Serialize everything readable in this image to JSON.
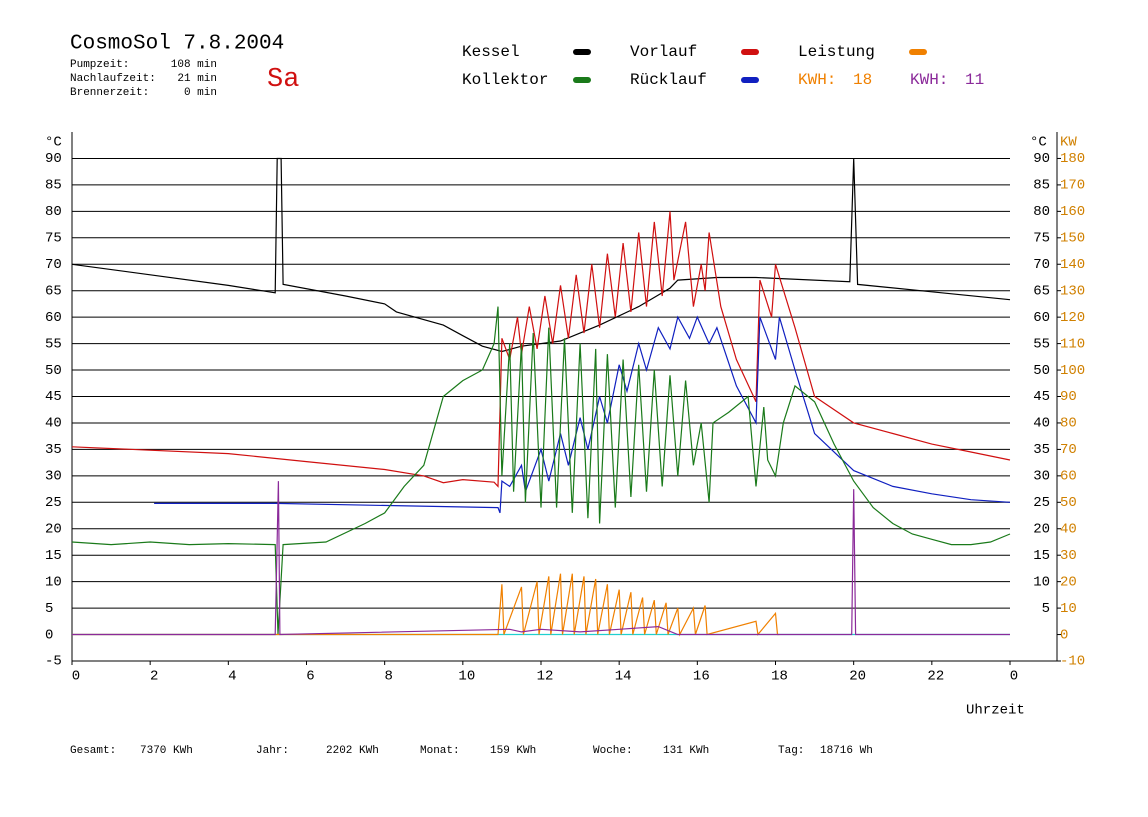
{
  "chart_data": {
    "type": "line",
    "title": "CosmoSol 7.8.2004",
    "day": "Sa",
    "stats": [
      {
        "label": "Pumpzeit:",
        "value": "108 min"
      },
      {
        "label": "Nachlaufzeit:",
        "value": "21 min"
      },
      {
        "label": "Brennerzeit:",
        "value": "0 min"
      }
    ],
    "energy_labels": [
      {
        "label": "KWH:",
        "value": 18,
        "color": "#f08000"
      },
      {
        "label": "KWH:",
        "value": 11,
        "color": "#8b2a9a"
      }
    ],
    "totals": [
      {
        "label": "Gesamt:",
        "value": "7370 KWh"
      },
      {
        "label": "Jahr:",
        "value": "2202 KWh"
      },
      {
        "label": "Monat:",
        "value": "159 KWh"
      },
      {
        "label": "Woche:",
        "value": "131 KWh"
      },
      {
        "label": "Tag:",
        "value": "18716 Wh"
      }
    ],
    "y_unit": "°C",
    "y2_unit": "KW",
    "x_label": "Uhrzeit",
    "xlim": [
      0,
      24
    ],
    "xticks": [
      0,
      2,
      4,
      6,
      8,
      10,
      12,
      14,
      16,
      18,
      20,
      22,
      {
        "value": 24,
        "label": "0"
      }
    ],
    "ylim": [
      -5,
      95
    ],
    "yticks": [
      -5,
      0,
      5,
      10,
      15,
      20,
      25,
      30,
      35,
      40,
      45,
      50,
      55,
      60,
      65,
      70,
      75,
      80,
      85,
      90
    ],
    "y2lim": [
      -10,
      190
    ],
    "y2ticks": [
      -10,
      0,
      10,
      20,
      30,
      40,
      50,
      60,
      70,
      80,
      90,
      100,
      110,
      120,
      130,
      140,
      150,
      160,
      170,
      180
    ],
    "grid": true,
    "series": [
      {
        "name": "Kessel",
        "color": "#000000",
        "x": [
          0,
          2,
          4,
          5.2,
          5.25,
          5.35,
          5.4,
          7,
          8,
          8.3,
          9.5,
          10,
          10.5,
          11,
          11.5,
          12.5,
          13.5,
          14.5,
          15.3,
          15.5,
          16.5,
          17.5,
          19.9,
          20.0,
          20.1,
          22,
          24
        ],
        "values": [
          70,
          68,
          66,
          64.6,
          90,
          90,
          66.2,
          64,
          62.5,
          61,
          58.5,
          56.5,
          54.5,
          53.5,
          54.5,
          55.5,
          58.5,
          62,
          65.5,
          67,
          67.5,
          67.5,
          66.7,
          90,
          66.2,
          64.8,
          63.3
        ]
      },
      {
        "name": "Kollektor",
        "color": "#1a7a1a",
        "x": [
          0,
          1,
          2,
          3,
          4,
          5.2,
          5.27,
          5.4,
          6.5,
          7.5,
          8,
          8.5,
          9,
          9.5,
          10,
          10.5,
          10.8,
          10.9,
          11,
          11.2,
          11.3,
          11.5,
          11.6,
          11.8,
          12,
          12.2,
          12.4,
          12.6,
          12.8,
          13,
          13.2,
          13.4,
          13.5,
          13.7,
          13.9,
          14.1,
          14.3,
          14.5,
          14.7,
          14.9,
          15.1,
          15.3,
          15.5,
          15.7,
          15.9,
          16.1,
          16.3,
          16.4,
          16.8,
          17.3,
          17.5,
          17.7,
          17.8,
          18,
          18.2,
          18.5,
          19,
          19.5,
          20,
          20.2,
          20.5,
          21,
          21.5,
          22,
          22.5,
          23,
          23.5,
          24
        ],
        "values": [
          17.5,
          17,
          17.5,
          17,
          17.2,
          17,
          0,
          17,
          17.5,
          21,
          23,
          28,
          32,
          45,
          48,
          50,
          55,
          62,
          30,
          55,
          27,
          55,
          25,
          57,
          24,
          58,
          24,
          56,
          23,
          55,
          22,
          54,
          21,
          53,
          24,
          52,
          26,
          51,
          27,
          50,
          28,
          49,
          30,
          48,
          32,
          40,
          25,
          40,
          42,
          45,
          28,
          43,
          33,
          30,
          40,
          47,
          44,
          36,
          29,
          27,
          24,
          21,
          19,
          18,
          17,
          17,
          17.5,
          19
        ]
      },
      {
        "name": "Vorlauf",
        "color": "#d01010",
        "x": [
          0,
          4,
          6,
          8,
          9,
          9.5,
          10,
          10.8,
          10.9,
          11,
          11.2,
          11.4,
          11.5,
          11.7,
          11.9,
          12.1,
          12.3,
          12.5,
          12.7,
          12.9,
          13.1,
          13.3,
          13.5,
          13.7,
          13.9,
          14.1,
          14.3,
          14.5,
          14.7,
          14.9,
          15.1,
          15.3,
          15.4,
          15.7,
          15.9,
          16.1,
          16.2,
          16.3,
          16.6,
          17,
          17.5,
          17.6,
          17.9,
          18,
          18.5,
          19,
          20,
          21,
          22,
          23,
          24
        ],
        "values": [
          35.5,
          34.2,
          32.7,
          31.2,
          30,
          28.7,
          29.3,
          28.8,
          28,
          56,
          52,
          60,
          53,
          62,
          54,
          64,
          55,
          66,
          56,
          68,
          57,
          70,
          58,
          72,
          60,
          74,
          61,
          76,
          62,
          78,
          64,
          80,
          67,
          78,
          62,
          70,
          65,
          76,
          62,
          52,
          44,
          67,
          60,
          70,
          58,
          45,
          40,
          38,
          36,
          34.5,
          33
        ]
      },
      {
        "name": "Rücklauf",
        "color": "#1020c0",
        "x": [
          2.1,
          5.2,
          10.9,
          10.95,
          11,
          11.2,
          11.5,
          11.6,
          12,
          12.2,
          12.5,
          12.7,
          13,
          13.2,
          13.5,
          13.7,
          14,
          14.2,
          14.5,
          14.7,
          15,
          15.3,
          15.5,
          15.8,
          16,
          16.3,
          16.5,
          17,
          17.5,
          17.6,
          18,
          18.1,
          18.5,
          19,
          20,
          21,
          22,
          23,
          24
        ],
        "values": [
          24.8,
          24.8,
          24,
          23,
          29,
          28,
          32,
          27,
          35,
          29,
          38,
          32,
          41,
          35,
          45,
          40,
          51,
          46,
          55,
          50,
          58,
          54,
          60,
          56,
          60,
          55,
          58,
          47,
          40,
          60,
          52,
          60,
          50,
          38,
          31,
          28,
          26.6,
          25.5,
          25
        ]
      },
      {
        "name": "Leistung",
        "color": "#f08000",
        "axis": "y2",
        "x": [
          0,
          10.9,
          11.0,
          11.05,
          11.5,
          11.55,
          11.9,
          11.95,
          12.2,
          12.25,
          12.5,
          12.55,
          12.8,
          12.85,
          13.1,
          13.15,
          13.4,
          13.45,
          13.7,
          13.75,
          14,
          14.05,
          14.3,
          14.35,
          14.6,
          14.65,
          14.9,
          14.95,
          15.2,
          15.25,
          15.5,
          15.55,
          15.9,
          15.95,
          16.2,
          16.25,
          17.5,
          17.55,
          18,
          18.05,
          18.1
        ],
        "values": [
          0,
          0,
          19,
          0,
          18,
          0,
          20,
          0,
          22,
          0,
          23,
          0,
          23,
          0,
          22,
          0,
          21,
          0,
          19,
          0,
          17,
          0,
          16,
          0,
          14,
          0,
          13,
          0,
          12,
          0,
          10,
          0,
          10,
          0,
          11,
          0,
          5,
          0,
          8,
          0,
          0
        ]
      },
      {
        "color": "#8b2a9a",
        "axis": "y2",
        "x": [
          0,
          5.2,
          5.28,
          5.32,
          11.2,
          11.5,
          12,
          13,
          14,
          15,
          15.5,
          19.95,
          20.0,
          20.05,
          24
        ],
        "values": [
          0,
          0,
          58,
          0,
          2,
          1,
          2,
          1,
          2,
          3,
          0,
          0,
          55,
          0,
          0
        ]
      },
      {
        "color": "#20d0d0",
        "axis": "y2",
        "x": [
          0,
          24
        ],
        "values": [
          0,
          0
        ]
      }
    ]
  }
}
